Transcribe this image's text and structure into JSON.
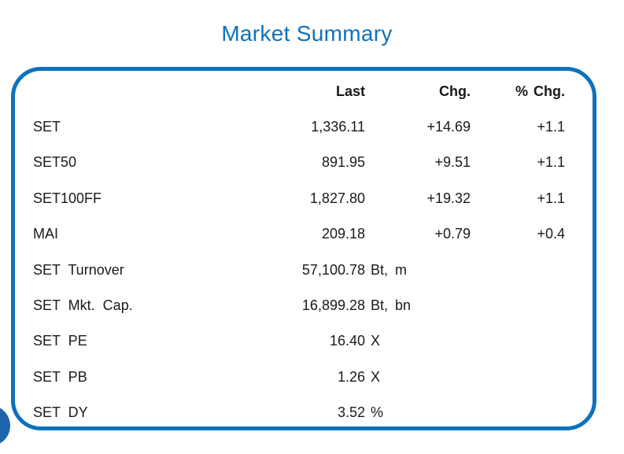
{
  "title": "Market Summary",
  "colors": {
    "accent_blue": "#0d71bd",
    "circle_blue": "#1d66ad",
    "text_color": "#1a1a1a"
  },
  "table": {
    "headers": {
      "label": "",
      "last": "Last",
      "unit": "",
      "chg": "Chg.",
      "pct_chg": "% Chg."
    },
    "rows": [
      {
        "label": "SET",
        "last": "1,336.11",
        "unit": "",
        "chg": "+14.69",
        "pct_chg": "+1.1"
      },
      {
        "label": "SET50",
        "last": "891.95",
        "unit": "",
        "chg": "+9.51",
        "pct_chg": "+1.1"
      },
      {
        "label": "SET100FF",
        "last": "1,827.80",
        "unit": "",
        "chg": "+19.32",
        "pct_chg": "+1.1"
      },
      {
        "label": "MAI",
        "last": "209.18",
        "unit": "",
        "chg": "+0.79",
        "pct_chg": "+0.4"
      },
      {
        "label": "SET Turnover",
        "last": "57,100.78",
        "unit": "Bt, m",
        "chg": "",
        "pct_chg": ""
      },
      {
        "label": "SET Mkt. Cap.",
        "last": "16,899.28",
        "unit": "Bt, bn",
        "chg": "",
        "pct_chg": ""
      },
      {
        "label": "SET PE",
        "last": "16.40",
        "unit": "X",
        "chg": "",
        "pct_chg": ""
      },
      {
        "label": "SET PB",
        "last": "1.26",
        "unit": "X",
        "chg": "",
        "pct_chg": ""
      },
      {
        "label": "SET DY",
        "last": "3.52",
        "unit": "%",
        "chg": "",
        "pct_chg": ""
      }
    ]
  },
  "chart_data": {
    "type": "table",
    "title": "Market Summary",
    "columns": [
      "",
      "Last",
      "Chg.",
      "% Chg."
    ],
    "rows": [
      {
        "name": "SET",
        "last": 1336.11,
        "chg": 14.69,
        "pct_chg": 1.1,
        "unit": ""
      },
      {
        "name": "SET50",
        "last": 891.95,
        "chg": 9.51,
        "pct_chg": 1.1,
        "unit": ""
      },
      {
        "name": "SET100FF",
        "last": 1827.8,
        "chg": 19.32,
        "pct_chg": 1.1,
        "unit": ""
      },
      {
        "name": "MAI",
        "last": 209.18,
        "chg": 0.79,
        "pct_chg": 0.4,
        "unit": ""
      },
      {
        "name": "SET Turnover",
        "last": 57100.78,
        "chg": null,
        "pct_chg": null,
        "unit": "Bt, m"
      },
      {
        "name": "SET Mkt. Cap.",
        "last": 16899.28,
        "chg": null,
        "pct_chg": null,
        "unit": "Bt, bn"
      },
      {
        "name": "SET PE",
        "last": 16.4,
        "chg": null,
        "pct_chg": null,
        "unit": "X"
      },
      {
        "name": "SET PB",
        "last": 1.26,
        "chg": null,
        "pct_chg": null,
        "unit": "X"
      },
      {
        "name": "SET DY",
        "last": 3.52,
        "chg": null,
        "pct_chg": null,
        "unit": "%"
      }
    ],
    "legend_position": "none",
    "grid": false
  }
}
